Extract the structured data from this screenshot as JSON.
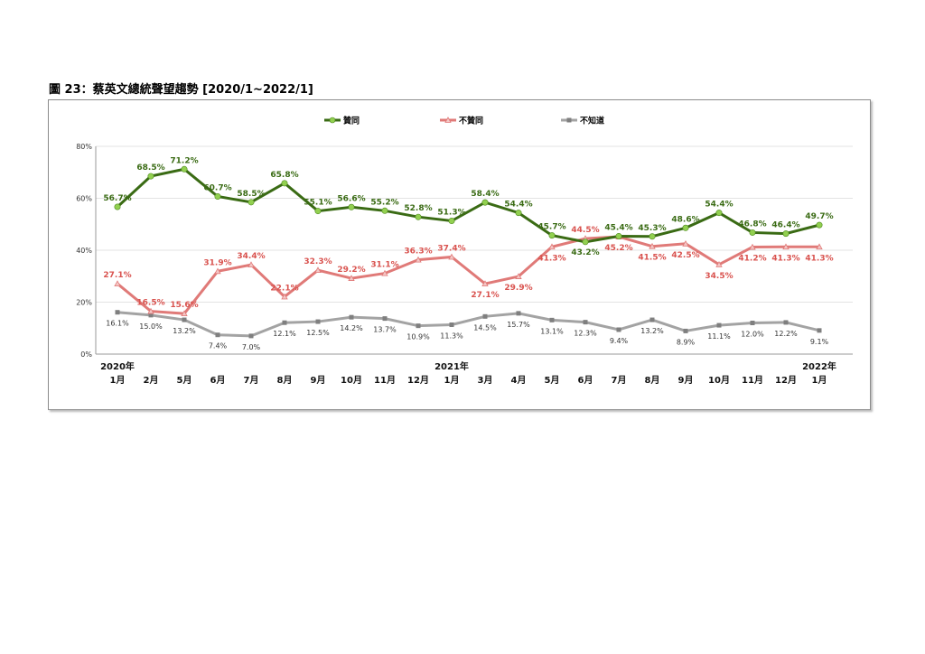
{
  "figure_title": "圖 23：蔡英文總統聲望趨勢  [2020/1~2022/1]",
  "colors": {
    "approve": "#3a6b14",
    "approve_marker": "#92d050",
    "disapprove": "#e07a78",
    "dontknow": "#a3a3a3",
    "dontknow_marker": "#7f7f7f",
    "grid": "#e3e3e3"
  },
  "chart_data": {
    "type": "line",
    "categories": [
      [
        "2020年",
        "1月"
      ],
      [
        "",
        "2月"
      ],
      [
        "",
        "5月"
      ],
      [
        "",
        "6月"
      ],
      [
        "",
        "7月"
      ],
      [
        "",
        "8月"
      ],
      [
        "",
        "9月"
      ],
      [
        "",
        "10月"
      ],
      [
        "",
        "11月"
      ],
      [
        "",
        "12月"
      ],
      [
        "2021年",
        "1月"
      ],
      [
        "",
        "3月"
      ],
      [
        "",
        "4月"
      ],
      [
        "",
        "5月"
      ],
      [
        "",
        "6月"
      ],
      [
        "",
        "7月"
      ],
      [
        "",
        "8月"
      ],
      [
        "",
        "9月"
      ],
      [
        "",
        "10月"
      ],
      [
        "",
        "11月"
      ],
      [
        "",
        "12月"
      ],
      [
        "2022年",
        "1月"
      ]
    ],
    "series": [
      {
        "name": "贊同",
        "values": [
          56.7,
          68.5,
          71.2,
          60.7,
          58.5,
          65.8,
          55.1,
          56.6,
          55.2,
          52.8,
          51.3,
          58.4,
          54.4,
          45.7,
          43.2,
          45.4,
          45.3,
          48.6,
          54.4,
          46.8,
          46.4,
          49.7
        ]
      },
      {
        "name": "不贊同",
        "values": [
          27.1,
          16.5,
          15.6,
          31.9,
          34.4,
          22.1,
          32.3,
          29.2,
          31.1,
          36.3,
          37.4,
          27.1,
          29.9,
          41.3,
          44.5,
          45.2,
          41.5,
          42.5,
          34.5,
          41.2,
          41.3,
          41.3
        ]
      },
      {
        "name": "不知道",
        "values": [
          16.1,
          15.0,
          13.2,
          7.4,
          7.0,
          12.1,
          12.5,
          14.2,
          13.7,
          10.9,
          11.3,
          14.5,
          15.7,
          13.1,
          12.3,
          9.4,
          13.2,
          8.9,
          11.1,
          12.0,
          12.2,
          9.1
        ]
      }
    ],
    "y_ticks": [
      "0%",
      "20%",
      "40%",
      "60%",
      "80%"
    ],
    "ylim": [
      0,
      80
    ],
    "grid": true,
    "legend_position": "top"
  }
}
